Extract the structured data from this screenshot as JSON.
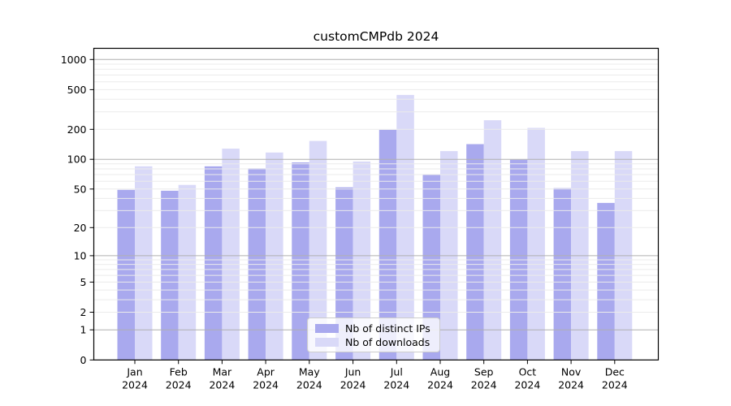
{
  "chart_data": {
    "type": "bar",
    "title": "customCMPdb 2024",
    "categories": [
      "Jan 2024",
      "Feb 2024",
      "Mar 2024",
      "Apr 2024",
      "May 2024",
      "Jun 2024",
      "Jul 2024",
      "Aug 2024",
      "Sep 2024",
      "Oct 2024",
      "Nov 2024",
      "Dec 2024"
    ],
    "series": [
      {
        "name": "Nb of distinct IPs",
        "color": "#a9a9ee",
        "values": [
          49,
          48,
          85,
          81,
          93,
          52,
          198,
          70,
          142,
          99,
          51,
          36
        ]
      },
      {
        "name": "Nb of downloads",
        "color": "#d9d9f8",
        "values": [
          85,
          55,
          128,
          117,
          153,
          95,
          443,
          121,
          247,
          207,
          121,
          121
        ]
      }
    ],
    "xlabel": "",
    "ylabel": "",
    "yscale": "log1p",
    "yticks": [
      0,
      1,
      2,
      5,
      10,
      20,
      50,
      100,
      200,
      500,
      1000
    ],
    "ylim": [
      0,
      1300
    ],
    "grid": "on",
    "legend_position": "lower-center",
    "colors": {
      "major_grid": "#b0b0b0",
      "minor_grid": "#ebebeb",
      "spine": "#000000",
      "text": "#000000",
      "background": "#ffffff"
    }
  }
}
